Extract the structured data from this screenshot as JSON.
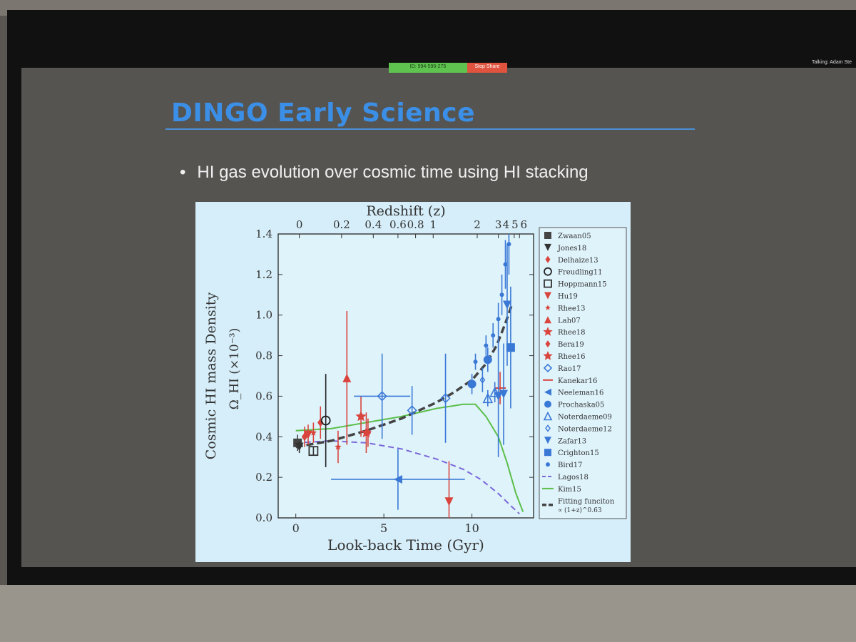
{
  "zoom": {
    "meeting_id": "ID: 994-596-275",
    "stop_share": "Stop Share",
    "talking": "Talking: Adam Ste"
  },
  "slide": {
    "title": "DINGO Early Science",
    "bullet": "HI gas evolution over cosmic time using HI stacking"
  },
  "chart_data": {
    "type": "scatter",
    "xlabel": "Look-back Time (Gyr)",
    "ylabel": "Cosmic HI  mass Density",
    "ylabel2": "Ω_HI (×10⁻³)",
    "top_axis_label": "Redshift (z)",
    "xlim": [
      -1,
      13.5
    ],
    "ylim": [
      0.0,
      1.4
    ],
    "x_ticks": [
      0,
      5,
      10
    ],
    "y_ticks": [
      0.0,
      0.2,
      0.4,
      0.6,
      0.8,
      1.0,
      1.2,
      1.4
    ],
    "top_ticks": [
      {
        "label": "0",
        "t": 0.2
      },
      {
        "label": "0.2",
        "t": 2.6
      },
      {
        "label": "0.4",
        "t": 4.4
      },
      {
        "label": "0.6",
        "t": 5.8
      },
      {
        "label": "0.8",
        "t": 6.8
      },
      {
        "label": "1",
        "t": 7.8
      },
      {
        "label": "2",
        "t": 10.3
      },
      {
        "label": "3",
        "t": 11.5
      },
      {
        "label": "4",
        "t": 12.1
      },
      {
        "label": "5",
        "t": 12.4
      },
      {
        "label": "6",
        "t": 12.7
      }
    ],
    "legend_position": "right",
    "series": [
      {
        "name": "Zwaan05",
        "color": "#444444",
        "marker": "square-filled",
        "points": [
          {
            "x": 0.1,
            "y": 0.37,
            "err": 0.04
          }
        ]
      },
      {
        "name": "Jones18",
        "color": "#333333",
        "marker": "tri-down-filled",
        "points": [
          {
            "x": 0.2,
            "y": 0.35,
            "err": 0.03
          }
        ]
      },
      {
        "name": "Delhaize13",
        "color": "#d9443c",
        "marker": "diamond-filled",
        "points": [
          {
            "x": 0.5,
            "y": 0.4,
            "err": 0.05
          },
          {
            "x": 1.4,
            "y": 0.47,
            "err": 0.08
          }
        ]
      },
      {
        "name": "Freudling11",
        "color": "#222222",
        "marker": "circle-open",
        "points": [
          {
            "x": 1.7,
            "y": 0.48,
            "err": 0.23
          }
        ]
      },
      {
        "name": "Hoppmann15",
        "color": "#333333",
        "marker": "square-open",
        "points": [
          {
            "x": 1.0,
            "y": 0.33,
            "err": 0.02
          }
        ]
      },
      {
        "name": "Hu19",
        "color": "#d9443c",
        "marker": "tri-down-filled",
        "points": [
          {
            "x": 0.7,
            "y": 0.41,
            "err": 0.05
          },
          {
            "x": 8.7,
            "y": 0.08,
            "err": 0.2
          }
        ]
      },
      {
        "name": "Rhee13",
        "color": "#d9443c",
        "marker": "star-small",
        "points": [
          {
            "x": 2.4,
            "y": 0.35,
            "err": 0.08
          },
          {
            "x": 1.0,
            "y": 0.42,
            "err": 0.05
          }
        ]
      },
      {
        "name": "Lah07",
        "color": "#d9443c",
        "marker": "tri-up-filled",
        "points": [
          {
            "x": 2.9,
            "y": 0.69,
            "err": 0.33
          }
        ]
      },
      {
        "name": "Rhee18",
        "color": "#d9443c",
        "marker": "star-large",
        "points": [
          {
            "x": 3.7,
            "y": 0.5,
            "err": 0.1
          }
        ]
      },
      {
        "name": "Bera19",
        "color": "#d9443c",
        "marker": "diamond-filled",
        "points": [
          {
            "x": 4.1,
            "y": 0.42,
            "err": 0.07
          }
        ]
      },
      {
        "name": "Rhee16",
        "color": "#d9443c",
        "marker": "star-large",
        "points": [
          {
            "x": 4.0,
            "y": 0.42,
            "err": 0.1
          }
        ]
      },
      {
        "name": "Rao17",
        "color": "#3a78d6",
        "marker": "diamond-open",
        "points": [
          {
            "x": 4.9,
            "y": 0.6,
            "err": 0.21,
            "xerr": 1.6
          },
          {
            "x": 6.6,
            "y": 0.53,
            "err": 0.12
          },
          {
            "x": 8.5,
            "y": 0.59,
            "err": 0.22
          }
        ]
      },
      {
        "name": "Kanekar16",
        "color": "#d9443c",
        "marker": "hline",
        "points": [
          {
            "x": 11.6,
            "y": 0.64,
            "err": 0.08
          }
        ]
      },
      {
        "name": "Neeleman16",
        "color": "#3a78d6",
        "marker": "tri-left-filled",
        "points": [
          {
            "x": 5.8,
            "y": 0.19,
            "err": 0.15,
            "xerr": 3.8
          }
        ]
      },
      {
        "name": "Prochaska05",
        "color": "#3a78d6",
        "marker": "circle-filled",
        "points": [
          {
            "x": 10.0,
            "y": 0.66,
            "err": 0.05
          },
          {
            "x": 10.9,
            "y": 0.78,
            "err": 0.06
          }
        ]
      },
      {
        "name": "Noterdaeme09",
        "color": "#3a78d6",
        "marker": "tri-up-open",
        "points": [
          {
            "x": 10.9,
            "y": 0.59,
            "err": 0.04
          },
          {
            "x": 11.3,
            "y": 0.62,
            "err": 0.05
          }
        ]
      },
      {
        "name": "Noterdaeme12",
        "color": "#3a78d6",
        "marker": "diamond-open-small",
        "points": [
          {
            "x": 10.6,
            "y": 0.68,
            "err": 0.06
          }
        ]
      },
      {
        "name": "Zafar13",
        "color": "#3a78d6",
        "marker": "tri-down-filled",
        "points": [
          {
            "x": 11.5,
            "y": 0.6,
            "err": 0.3
          },
          {
            "x": 11.8,
            "y": 0.61,
            "err": 0.25
          },
          {
            "x": 12.0,
            "y": 1.05,
            "err": 0.3
          }
        ]
      },
      {
        "name": "Crighton15",
        "color": "#3a78d6",
        "marker": "square-filled",
        "points": [
          {
            "x": 12.2,
            "y": 0.84,
            "err": 0.3
          }
        ]
      },
      {
        "name": "Bird17",
        "color": "#3a78d6",
        "marker": "circle-small",
        "points": [
          {
            "x": 10.2,
            "y": 0.77,
            "err": 0.04
          },
          {
            "x": 10.8,
            "y": 0.85,
            "err": 0.05
          },
          {
            "x": 11.2,
            "y": 0.9,
            "err": 0.06
          },
          {
            "x": 11.5,
            "y": 0.98,
            "err": 0.08
          },
          {
            "x": 11.7,
            "y": 1.1,
            "err": 0.1
          },
          {
            "x": 11.9,
            "y": 1.25,
            "err": 0.12
          },
          {
            "x": 12.1,
            "y": 1.35,
            "err": 0.15
          }
        ]
      },
      {
        "name": "Lagos18",
        "color": "#7b68d9",
        "marker": "line-dashed",
        "curve": [
          [
            0,
            0.37
          ],
          [
            2,
            0.38
          ],
          [
            4,
            0.37
          ],
          [
            6,
            0.34
          ],
          [
            8,
            0.29
          ],
          [
            9.5,
            0.24
          ],
          [
            10.5,
            0.19
          ],
          [
            11.5,
            0.12
          ],
          [
            12.2,
            0.06
          ],
          [
            12.7,
            0.02
          ]
        ]
      },
      {
        "name": "Kim15",
        "color": "#5cbf4a",
        "marker": "line-solid",
        "curve": [
          [
            0,
            0.43
          ],
          [
            2,
            0.44
          ],
          [
            4,
            0.47
          ],
          [
            6,
            0.5
          ],
          [
            8,
            0.54
          ],
          [
            9.5,
            0.56
          ],
          [
            10.2,
            0.56
          ],
          [
            10.8,
            0.5
          ],
          [
            11.5,
            0.4
          ],
          [
            12.0,
            0.27
          ],
          [
            12.5,
            0.12
          ],
          [
            12.9,
            0.03
          ]
        ]
      },
      {
        "name": "Fitting funciton",
        "name2": "∝ (1+z)^0.63",
        "color": "#444444",
        "marker": "line-dashed-thick",
        "curve": [
          [
            0,
            0.35
          ],
          [
            2,
            0.38
          ],
          [
            4,
            0.43
          ],
          [
            6,
            0.49
          ],
          [
            8,
            0.57
          ],
          [
            9,
            0.62
          ],
          [
            10,
            0.68
          ],
          [
            10.8,
            0.76
          ],
          [
            11.4,
            0.85
          ],
          [
            11.9,
            0.96
          ],
          [
            12.3,
            1.06
          ]
        ]
      }
    ]
  }
}
